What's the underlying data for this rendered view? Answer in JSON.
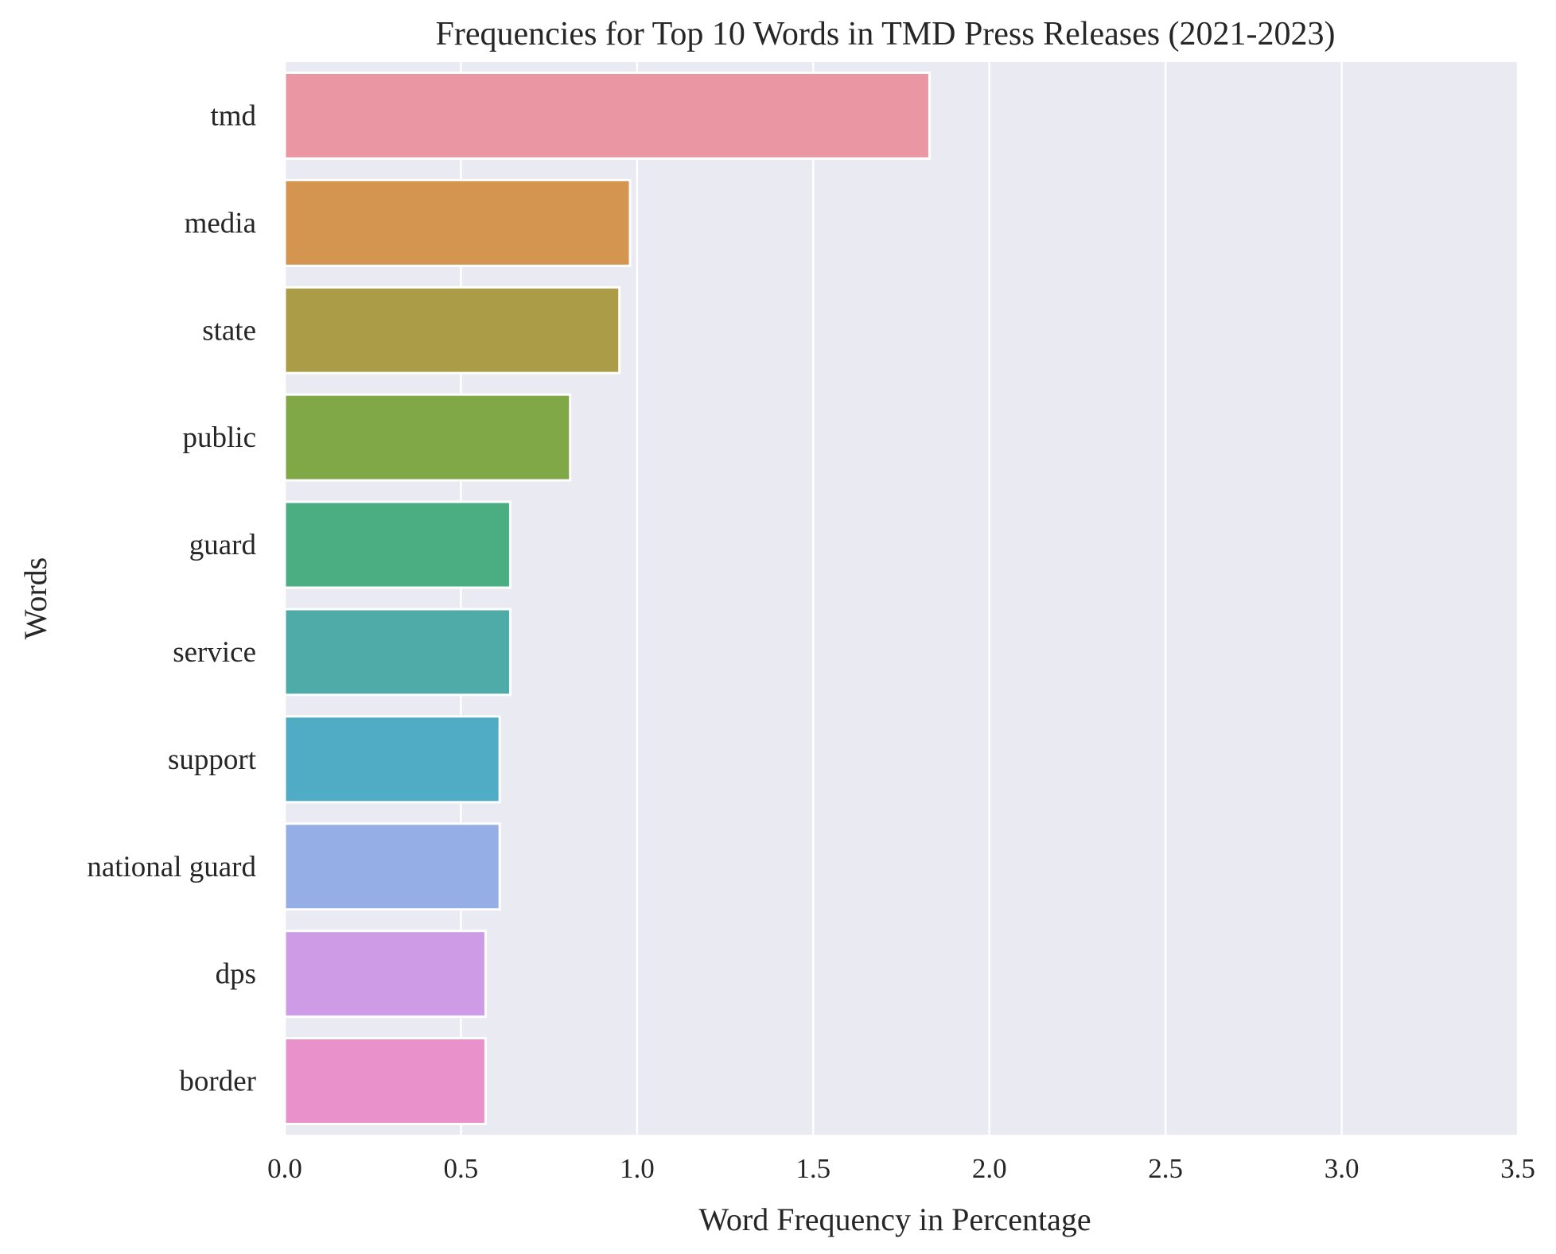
{
  "chart_data": {
    "type": "bar",
    "orientation": "horizontal",
    "title": "Frequencies for Top 10 Words in TMD Press Releases (2021-2023)",
    "xlabel": "Word Frequency in Percentage",
    "ylabel": "Words",
    "categories": [
      "tmd",
      "media",
      "state",
      "public",
      "guard",
      "service",
      "support",
      "national guard",
      "dps",
      "border"
    ],
    "values": [
      1.83,
      0.98,
      0.95,
      0.81,
      0.64,
      0.64,
      0.61,
      0.61,
      0.57,
      0.57
    ],
    "xlim": [
      0,
      3.5
    ],
    "xticks": [
      "0.0",
      "0.5",
      "1.0",
      "1.5",
      "2.0",
      "2.5",
      "3.0",
      "3.5"
    ],
    "grid": true,
    "colors": [
      "#ea96a3",
      "#d49551",
      "#ab9d47",
      "#80a846",
      "#4bae82",
      "#4faba8",
      "#50acc4",
      "#95aee6",
      "#ce9be6",
      "#e991cb"
    ],
    "background": "#eaeaf2"
  }
}
